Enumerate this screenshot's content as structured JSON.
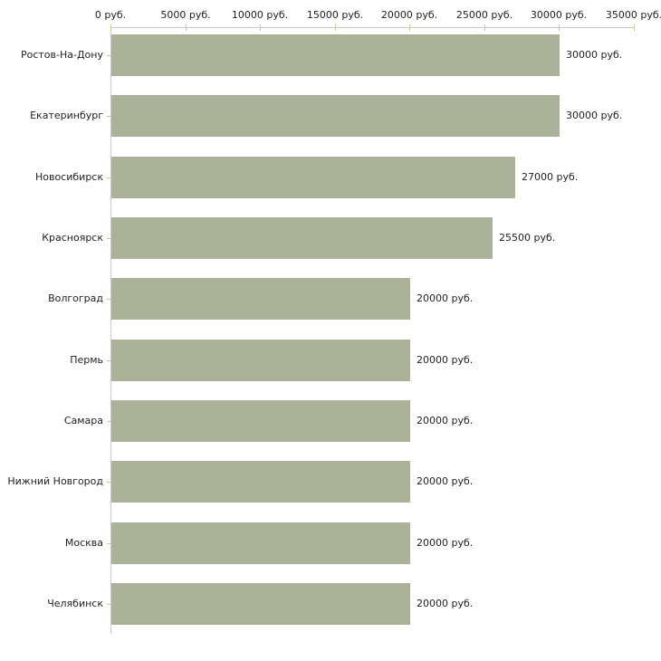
{
  "chart_data": {
    "type": "bar",
    "orientation": "horizontal",
    "title": "",
    "xlabel": "",
    "ylabel": "",
    "unit": "руб.",
    "categories": [
      "Ростов-На-Дону",
      "Екатеринбург",
      "Новосибирск",
      "Красноярск",
      "Волгоград",
      "Пермь",
      "Самара",
      "Нижний Новгород",
      "Москва",
      "Челябинск"
    ],
    "values": [
      30000,
      30000,
      27000,
      25500,
      20000,
      20000,
      20000,
      20000,
      20000,
      20000
    ],
    "value_labels": [
      "30000 руб.",
      "30000 руб.",
      "27000 руб.",
      "25500 руб.",
      "20000 руб.",
      "20000 руб.",
      "20000 руб.",
      "20000 руб.",
      "20000 руб.",
      "20000 руб."
    ],
    "x_ticks": [
      0,
      5000,
      10000,
      15000,
      20000,
      25000,
      30000,
      35000
    ],
    "x_tick_labels": [
      "0 руб.",
      "5000 руб.",
      "10000 руб.",
      "15000 руб.",
      "20000 руб.",
      "25000 руб.",
      "30000 руб.",
      "35000 руб."
    ],
    "xlim": [
      0,
      35000
    ],
    "grid": false,
    "legend": false,
    "colors": {
      "bar": "#acb299",
      "axis": "#c9c9c9",
      "tick": "#c6c69b",
      "text": "#1f1f1f",
      "background": "#ffffff"
    }
  }
}
